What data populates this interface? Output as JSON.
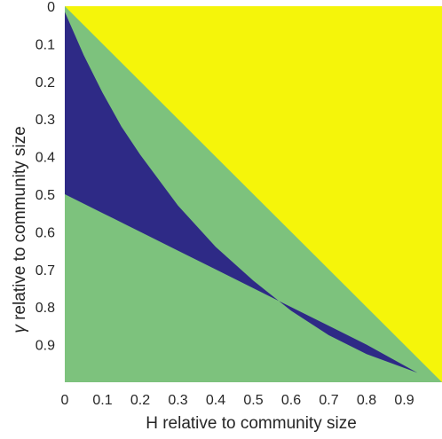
{
  "chart_data": {
    "type": "heatmap",
    "title": "",
    "xlabel": "H relative to community size",
    "ylabel_symbol": "γ",
    "ylabel_text": " relative to community size",
    "xlim": [
      0,
      1
    ],
    "ylim": [
      0,
      1
    ],
    "y_reversed": true,
    "x_ticks": [
      0,
      0.1,
      0.2,
      0.3,
      0.4,
      0.5,
      0.6,
      0.7,
      0.8,
      0.9
    ],
    "x_tick_labels": [
      "0",
      "0.1",
      "0.2",
      "0.3",
      "0.4",
      "0.5",
      "0.6",
      "0.7",
      "0.8",
      "0.9"
    ],
    "y_ticks": [
      0,
      0.1,
      0.2,
      0.3,
      0.4,
      0.5,
      0.6,
      0.7,
      0.8,
      0.9
    ],
    "y_tick_labels": [
      "0",
      "0.1",
      "0.2",
      "0.3",
      "0.4",
      "0.5",
      "0.6",
      "0.7",
      "0.8",
      "0.9"
    ],
    "grid": false,
    "colors": {
      "background_region": "#7dc27d",
      "upper_region": "#f5f50a",
      "middle_region": "#2e2a86"
    },
    "regions": [
      {
        "color_key": "background_region",
        "boundary": [
          [
            0,
            0
          ],
          [
            1,
            0
          ],
          [
            1,
            1
          ],
          [
            0,
            1
          ]
        ]
      },
      {
        "color_key": "upper_region",
        "boundary": [
          [
            0,
            0
          ],
          [
            1,
            0
          ],
          [
            1,
            1
          ]
        ]
      },
      {
        "color_key": "middle_region",
        "boundary": [
          [
            0,
            0.015
          ],
          [
            0.05,
            0.13
          ],
          [
            0.1,
            0.23
          ],
          [
            0.15,
            0.32
          ],
          [
            0.2,
            0.395
          ],
          [
            0.3,
            0.53
          ],
          [
            0.4,
            0.64
          ],
          [
            0.5,
            0.73
          ],
          [
            0.6,
            0.81
          ],
          [
            0.7,
            0.875
          ],
          [
            0.8,
            0.925
          ],
          [
            0.9,
            0.962
          ],
          [
            0.935,
            0.975
          ],
          [
            0.8,
            0.9
          ],
          [
            0.7,
            0.85
          ],
          [
            0.6,
            0.8
          ],
          [
            0.5,
            0.75
          ],
          [
            0.4,
            0.7
          ],
          [
            0.3,
            0.65
          ],
          [
            0.2,
            0.6
          ],
          [
            0.1,
            0.55
          ],
          [
            0,
            0.5
          ]
        ]
      }
    ]
  }
}
